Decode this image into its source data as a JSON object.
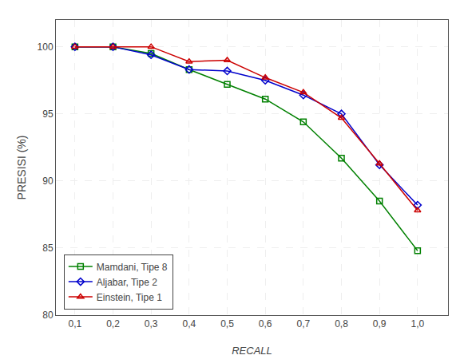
{
  "chart_data": {
    "type": "line",
    "x": [
      0.1,
      0.2,
      0.3,
      0.4,
      0.5,
      0.6,
      0.7,
      0.8,
      0.9,
      1.0
    ],
    "series": [
      {
        "name": "Mamdani, Tipe 8",
        "color": "#008000",
        "marker": "square",
        "values": [
          100.0,
          100.0,
          99.5,
          98.3,
          97.2,
          96.1,
          94.4,
          91.7,
          88.5,
          84.8
        ]
      },
      {
        "name": "Aljabar, Tipe 2",
        "color": "#0000cc",
        "marker": "diamond",
        "values": [
          100.0,
          100.0,
          99.4,
          98.3,
          98.2,
          97.5,
          96.4,
          95.0,
          91.2,
          88.2
        ]
      },
      {
        "name": "Einstein, Tipe 1",
        "color": "#cc0000",
        "marker": "triangle-up",
        "values": [
          100.0,
          100.0,
          100.0,
          98.9,
          99.0,
          97.7,
          96.6,
          94.7,
          91.3,
          87.8
        ]
      }
    ],
    "xlabel": "RECALL",
    "ylabel": "PRESISI (%)",
    "xlim": [
      0.05,
      1.08
    ],
    "ylim": [
      80,
      102
    ],
    "xticks": [
      {
        "value": 0.1,
        "label": "0,1"
      },
      {
        "value": 0.2,
        "label": "0,2"
      },
      {
        "value": 0.3,
        "label": "0,3"
      },
      {
        "value": 0.4,
        "label": "0,4"
      },
      {
        "value": 0.5,
        "label": "0,5"
      },
      {
        "value": 0.6,
        "label": "0,6"
      },
      {
        "value": 0.7,
        "label": "0,7"
      },
      {
        "value": 0.8,
        "label": "0,8"
      },
      {
        "value": 0.9,
        "label": "0,9"
      },
      {
        "value": 1.0,
        "label": "1,0"
      }
    ],
    "yticks": [
      80,
      85,
      90,
      95,
      100
    ],
    "grid": true,
    "legend": "lower left"
  }
}
